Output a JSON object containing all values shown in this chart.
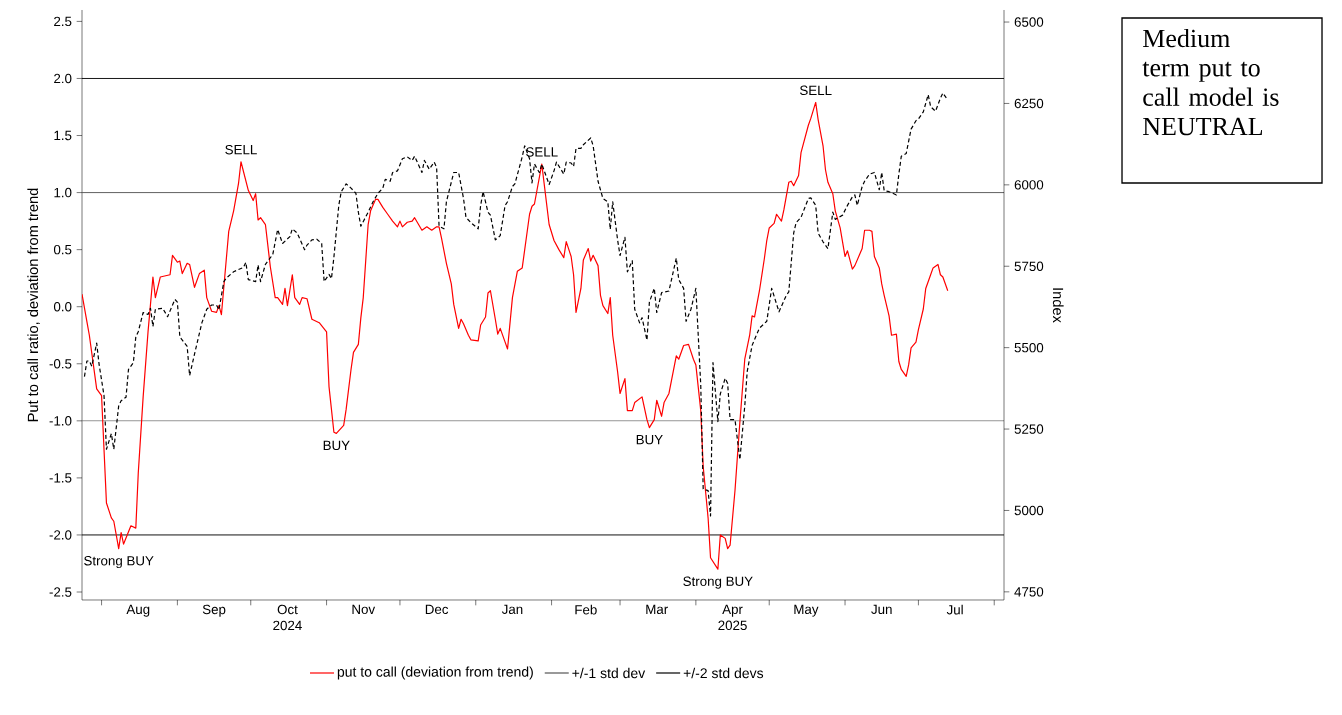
{
  "chart_data": {
    "type": "line",
    "ylabel": "Put to call ratio, deviation from trend",
    "y2label": "Index",
    "xlim": [
      "2024-07-24",
      "2025-08-05"
    ],
    "xticks": [
      {
        "value": "2024-08-01",
        "label": null
      },
      {
        "value": "2024-09-01",
        "label": null
      },
      {
        "value": "2024-10-01",
        "label": null
      },
      {
        "value": "2024-11-01",
        "label": null
      },
      {
        "value": "2024-12-01",
        "label": null
      },
      {
        "value": "2025-01-01",
        "label": null
      },
      {
        "value": "2025-02-01",
        "label": null
      },
      {
        "value": "2025-03-01",
        "label": null
      },
      {
        "value": "2025-04-01",
        "label": null
      },
      {
        "value": "2025-05-01",
        "label": null
      },
      {
        "value": "2025-06-01",
        "label": null
      },
      {
        "value": "2025-07-01",
        "label": null
      },
      {
        "value": "2025-08-01",
        "label": null
      },
      {
        "value": "2024-08-16",
        "label": "Aug"
      },
      {
        "value": "2024-09-16",
        "label": "Sep"
      },
      {
        "value": "2024-10-16",
        "label": "Oct 2024"
      },
      {
        "value": "2024-11-16",
        "label": "Nov"
      },
      {
        "value": "2024-12-16",
        "label": "Dec"
      },
      {
        "value": "2025-01-16",
        "label": "Jan"
      },
      {
        "value": "2025-02-15",
        "label": "Feb"
      },
      {
        "value": "2025-03-16",
        "label": "Mar"
      },
      {
        "value": "2025-04-16",
        "label": "Apr 2025"
      },
      {
        "value": "2025-05-16",
        "label": "May"
      },
      {
        "value": "2025-06-16",
        "label": "Jun"
      },
      {
        "value": "2025-07-16",
        "label": "Jul"
      }
    ],
    "ylim": [
      -2.57,
      2.6
    ],
    "yticks": [
      {
        "value": -2.5,
        "label": "-2.5"
      },
      {
        "value": -2,
        "label": "-2.0"
      },
      {
        "value": -1.5,
        "label": "-1.5"
      },
      {
        "value": -1,
        "label": "-1.0"
      },
      {
        "value": -0.5,
        "label": "-0.5"
      },
      {
        "value": 0,
        "label": "0.0"
      },
      {
        "value": 0.5,
        "label": "0.5"
      },
      {
        "value": 1,
        "label": "1.0"
      },
      {
        "value": 1.5,
        "label": "1.5"
      },
      {
        "value": 2,
        "label": "2.0"
      },
      {
        "value": 2.5,
        "label": "2.5"
      }
    ],
    "y2lim": [
      4725,
      6537
    ],
    "y2ticks": [
      4750,
      5000,
      5250,
      5500,
      5750,
      6000,
      6250,
      6500
    ],
    "legend": "bottom",
    "series": [
      {
        "color": "#000000",
        "axis": "y2",
        "line_style": "dashed",
        "x": [
          "2024-07-25",
          "2024-07-26",
          "2024-07-27",
          "2024-07-28",
          "2024-07-30",
          "2024-07-31",
          "2024-08-02",
          "2024-08-03",
          "2024-08-05",
          "2024-08-06",
          "2024-08-08",
          "2024-08-09",
          "2024-08-11",
          "2024-08-12",
          "2024-08-14",
          "2024-08-15",
          "2024-08-16",
          "2024-08-18",
          "2024-08-20",
          "2024-08-21",
          "2024-08-22",
          "2024-08-23",
          "2024-08-26",
          "2024-08-28",
          "2024-08-29",
          "2024-08-31",
          "2024-09-01",
          "2024-09-02",
          "2024-09-05",
          "2024-09-06",
          "2024-09-08",
          "2024-09-11",
          "2024-09-13",
          "2024-09-15",
          "2024-09-17",
          "2024-09-18",
          "2024-09-20",
          "2024-09-21",
          "2024-09-24",
          "2024-09-26",
          "2024-09-28",
          "2024-09-29",
          "2024-09-30",
          "2024-10-03",
          "2024-10-04",
          "2024-10-05",
          "2024-10-07",
          "2024-10-10",
          "2024-10-12",
          "2024-10-14",
          "2024-10-17",
          "2024-10-18",
          "2024-10-20",
          "2024-10-23",
          "2024-10-24",
          "2024-10-26",
          "2024-10-28",
          "2024-10-30",
          "2024-10-31",
          "2024-11-02",
          "2024-11-03",
          "2024-11-04",
          "2024-11-06",
          "2024-11-07",
          "2024-11-09",
          "2024-11-11",
          "2024-11-13",
          "2024-11-14",
          "2024-11-15",
          "2024-11-18",
          "2024-11-20",
          "2024-11-22",
          "2024-11-24",
          "2024-11-25",
          "2024-11-27",
          "2024-11-28",
          "2024-11-30",
          "2024-12-02",
          "2024-12-04",
          "2024-12-06",
          "2024-12-07",
          "2024-12-10",
          "2024-12-11",
          "2024-12-13",
          "2024-12-15",
          "2024-12-16",
          "2024-12-17",
          "2024-12-19",
          "2024-12-20",
          "2024-12-23",
          "2024-12-25",
          "2024-12-27",
          "2024-12-28",
          "2024-12-30",
          "2025-01-02",
          "2025-01-03",
          "2025-01-04",
          "2025-01-06",
          "2025-01-07",
          "2025-01-09",
          "2025-01-11",
          "2025-01-13",
          "2025-01-14",
          "2025-01-16",
          "2025-01-17",
          "2025-01-20",
          "2025-01-21",
          "2025-01-23",
          "2025-01-24",
          "2025-01-25",
          "2025-01-27",
          "2025-01-28",
          "2025-01-31",
          "2025-02-02",
          "2025-02-03",
          "2025-02-06",
          "2025-02-07",
          "2025-02-09",
          "2025-02-10",
          "2025-02-11",
          "2025-02-13",
          "2025-02-14",
          "2025-02-17",
          "2025-02-18",
          "2025-02-20",
          "2025-02-22",
          "2025-02-24",
          "2025-02-25",
          "2025-02-26",
          "2025-02-28",
          "2025-03-01",
          "2025-03-03",
          "2025-03-04",
          "2025-03-06",
          "2025-03-07",
          "2025-03-09",
          "2025-03-10",
          "2025-03-12",
          "2025-03-13",
          "2025-03-15",
          "2025-03-16",
          "2025-03-18",
          "2025-03-21",
          "2025-03-24",
          "2025-03-25",
          "2025-03-27",
          "2025-03-28",
          "2025-03-30",
          "2025-04-01",
          "2025-04-03",
          "2025-04-04",
          "2025-04-06",
          "2025-04-07",
          "2025-04-08",
          "2025-04-10",
          "2025-04-11",
          "2025-04-13",
          "2025-04-14",
          "2025-04-15",
          "2025-04-17",
          "2025-04-19",
          "2025-04-21",
          "2025-04-22",
          "2025-04-24",
          "2025-04-25",
          "2025-04-27",
          "2025-04-30",
          "2025-05-02",
          "2025-05-05",
          "2025-05-08",
          "2025-05-09",
          "2025-05-11",
          "2025-05-12",
          "2025-05-14",
          "2025-05-17",
          "2025-05-18",
          "2025-05-20",
          "2025-05-21",
          "2025-05-23",
          "2025-05-25",
          "2025-05-27",
          "2025-05-28",
          "2025-05-31",
          "2025-06-02",
          "2025-06-04",
          "2025-06-05",
          "2025-06-06",
          "2025-06-08",
          "2025-06-09",
          "2025-06-11",
          "2025-06-13",
          "2025-06-15",
          "2025-06-16",
          "2025-06-17",
          "2025-06-19",
          "2025-06-22",
          "2025-06-23",
          "2025-06-24",
          "2025-06-26",
          "2025-06-28",
          "2025-06-30",
          "2025-07-01",
          "2025-07-03",
          "2025-07-05",
          "2025-07-06",
          "2025-07-08",
          "2025-07-10",
          "2025-07-11",
          "2025-07-13"
        ],
        "values": [
          5411,
          5459,
          5459,
          5443,
          5514,
          5448,
          5353,
          5188,
          5236,
          5188,
          5321,
          5337,
          5348,
          5433,
          5454,
          5533,
          5549,
          5608,
          5602,
          5621,
          5565,
          5618,
          5621,
          5595,
          5613,
          5648,
          5640,
          5533,
          5504,
          5414,
          5480,
          5576,
          5618,
          5631,
          5631,
          5616,
          5703,
          5714,
          5733,
          5740,
          5746,
          5762,
          5709,
          5703,
          5754,
          5703,
          5756,
          5786,
          5863,
          5820,
          5841,
          5865,
          5852,
          5801,
          5815,
          5831,
          5833,
          5820,
          5703,
          5725,
          5712,
          5778,
          5937,
          5979,
          6003,
          5990,
          5974,
          5916,
          5873,
          5916,
          5948,
          5974,
          5990,
          6017,
          6011,
          6038,
          6043,
          6080,
          6086,
          6075,
          6088,
          6038,
          6075,
          6048,
          6070,
          6054,
          5873,
          5865,
          5948,
          6038,
          6038,
          5958,
          5900,
          5884,
          5865,
          5937,
          5979,
          5916,
          5907,
          5831,
          5844,
          5937,
          5948,
          5995,
          6003,
          6086,
          6120,
          6080,
          6006,
          6064,
          6038,
          6064,
          6001,
          6043,
          6070,
          6033,
          6070,
          6067,
          6056,
          6112,
          6112,
          6123,
          6144,
          6120,
          6011,
          5958,
          5948,
          5863,
          5948,
          5831,
          5783,
          5839,
          5733,
          5767,
          5618,
          5576,
          5592,
          5523,
          5640,
          5682,
          5608,
          5669,
          5674,
          5775,
          5709,
          5682,
          5581,
          5618,
          5682,
          5385,
          5066,
          5061,
          4983,
          5454,
          5273,
          5358,
          5406,
          5390,
          5279,
          5279,
          5156,
          5321,
          5427,
          5507,
          5525,
          5560,
          5581,
          5682,
          5610,
          5661,
          5671,
          5852,
          5884,
          5900,
          5958,
          5960,
          5937,
          5852,
          5825,
          5804,
          5916,
          5894,
          5907,
          5937,
          5963,
          5969,
          5937,
          5995,
          6011,
          6033,
          6038,
          5985,
          6038,
          5982,
          5979,
          5969,
          6033,
          6088,
          6096,
          6171,
          6197,
          6202,
          6224,
          6277,
          6240,
          6226,
          6266,
          6282,
          6261
        ]
      },
      {
        "name": "put to call (deviation from trend)",
        "color": "#ff0000",
        "line_style": "solid",
        "x": [
          "2024-07-24",
          "2024-07-26",
          "2024-07-27",
          "2024-07-30",
          "2024-08-01",
          "2024-08-03",
          "2024-08-05",
          "2024-08-06",
          "2024-08-08",
          "2024-08-09",
          "2024-08-10",
          "2024-08-13",
          "2024-08-15",
          "2024-08-16",
          "2024-08-18",
          "2024-08-20",
          "2024-08-22",
          "2024-08-23",
          "2024-08-25",
          "2024-08-29",
          "2024-08-30",
          "2024-09-01",
          "2024-09-02",
          "2024-09-03",
          "2024-09-05",
          "2024-09-06",
          "2024-09-08",
          "2024-09-10",
          "2024-09-12",
          "2024-09-13",
          "2024-09-15",
          "2024-09-17",
          "2024-09-18",
          "2024-09-19",
          "2024-09-22",
          "2024-09-24",
          "2024-09-26",
          "2024-09-27",
          "2024-09-30",
          "2024-10-02",
          "2024-10-03",
          "2024-10-04",
          "2024-10-05",
          "2024-10-07",
          "2024-10-09",
          "2024-10-11",
          "2024-10-12",
          "2024-10-14",
          "2024-10-15",
          "2024-10-16",
          "2024-10-18",
          "2024-10-19",
          "2024-10-21",
          "2024-10-22",
          "2024-10-24",
          "2024-10-26",
          "2024-10-29",
          "2024-11-01",
          "2024-11-02",
          "2024-11-04",
          "2024-11-05",
          "2024-11-08",
          "2024-11-09",
          "2024-11-11",
          "2024-11-12",
          "2024-11-14",
          "2024-11-15",
          "2024-11-16",
          "2024-11-18",
          "2024-11-19",
          "2024-11-21",
          "2024-11-22",
          "2024-11-24",
          "2024-11-26",
          "2024-11-28",
          "2024-11-30",
          "2024-12-01",
          "2024-12-02",
          "2024-12-04",
          "2024-12-06",
          "2024-12-07",
          "2024-12-10",
          "2024-12-12",
          "2024-12-14",
          "2024-12-16",
          "2024-12-17",
          "2024-12-18",
          "2024-12-20",
          "2024-12-22",
          "2024-12-23",
          "2024-12-25",
          "2024-12-26",
          "2024-12-27",
          "2024-12-29",
          "2024-12-30",
          "2025-01-02",
          "2025-01-03",
          "2025-01-05",
          "2025-01-06",
          "2025-01-07",
          "2025-01-09",
          "2025-01-10",
          "2025-01-11",
          "2025-01-13",
          "2025-01-14",
          "2025-01-16",
          "2025-01-18",
          "2025-01-20",
          "2025-01-23",
          "2025-01-24",
          "2025-01-25",
          "2025-01-28",
          "2025-01-31",
          "2025-02-02",
          "2025-02-04",
          "2025-02-06",
          "2025-02-07",
          "2025-02-09",
          "2025-02-10",
          "2025-02-11",
          "2025-02-13",
          "2025-02-14",
          "2025-02-16",
          "2025-02-17",
          "2025-02-18",
          "2025-02-20",
          "2025-02-21",
          "2025-02-22",
          "2025-02-24",
          "2025-02-25",
          "2025-02-26",
          "2025-02-28",
          "2025-03-01",
          "2025-03-03",
          "2025-03-04",
          "2025-03-06",
          "2025-03-07",
          "2025-03-10",
          "2025-03-12",
          "2025-03-13",
          "2025-03-15",
          "2025-03-16",
          "2025-03-18",
          "2025-03-19",
          "2025-03-21",
          "2025-03-24",
          "2025-03-25",
          "2025-03-27",
          "2025-03-29",
          "2025-03-31",
          "2025-04-01",
          "2025-04-03",
          "2025-04-04",
          "2025-04-06",
          "2025-04-07",
          "2025-04-10",
          "2025-04-11",
          "2025-04-13",
          "2025-04-14",
          "2025-04-15",
          "2025-04-17",
          "2025-04-19",
          "2025-04-21",
          "2025-04-23",
          "2025-04-24",
          "2025-04-25",
          "2025-04-27",
          "2025-04-29",
          "2025-04-30",
          "2025-05-01",
          "2025-05-03",
          "2025-05-04",
          "2025-05-06",
          "2025-05-07",
          "2025-05-09",
          "2025-05-10",
          "2025-05-11",
          "2025-05-13",
          "2025-05-14",
          "2025-05-17",
          "2025-05-18",
          "2025-05-20",
          "2025-05-21",
          "2025-05-23",
          "2025-05-24",
          "2025-05-25",
          "2025-05-27",
          "2025-05-28",
          "2025-05-30",
          "2025-06-01",
          "2025-06-02",
          "2025-06-04",
          "2025-06-05",
          "2025-06-08",
          "2025-06-09",
          "2025-06-11",
          "2025-06-12",
          "2025-06-13",
          "2025-06-15",
          "2025-06-16",
          "2025-06-17",
          "2025-06-19",
          "2025-06-20",
          "2025-06-22",
          "2025-06-23",
          "2025-06-24",
          "2025-06-26",
          "2025-06-27",
          "2025-06-28",
          "2025-06-30",
          "2025-07-01",
          "2025-07-03",
          "2025-07-04",
          "2025-07-06",
          "2025-07-07",
          "2025-07-09",
          "2025-07-10",
          "2025-07-11",
          "2025-07-13"
        ],
        "values": [
          0.11,
          -0.13,
          -0.25,
          -0.72,
          -0.78,
          -1.72,
          -1.85,
          -1.88,
          -2.12,
          -1.98,
          -2.08,
          -1.92,
          -1.94,
          -1.46,
          -0.79,
          -0.22,
          0.26,
          0.08,
          0.26,
          0.28,
          0.45,
          0.39,
          0.4,
          0.29,
          0.38,
          0.37,
          0.17,
          0.29,
          0.32,
          0.08,
          -0.04,
          -0.05,
          0.01,
          -0.07,
          0.66,
          0.84,
          1.08,
          1.27,
          1.02,
          0.93,
          0.99,
          0.76,
          0.78,
          0.72,
          0.35,
          0.08,
          0.08,
          0.02,
          0.16,
          0.01,
          0.28,
          0.08,
          0.02,
          0.08,
          0.07,
          -0.11,
          -0.14,
          -0.22,
          -0.7,
          -1.1,
          -1.11,
          -1.04,
          -0.9,
          -0.55,
          -0.4,
          -0.33,
          -0.1,
          0.08,
          0.72,
          0.84,
          0.94,
          0.94,
          0.87,
          0.81,
          0.75,
          0.7,
          0.75,
          0.7,
          0.74,
          0.75,
          0.78,
          0.67,
          0.7,
          0.67,
          0.7,
          0.7,
          0.6,
          0.38,
          0.2,
          0.02,
          -0.19,
          -0.11,
          -0.15,
          -0.25,
          -0.29,
          -0.3,
          -0.16,
          -0.09,
          0.12,
          0.14,
          -0.11,
          -0.24,
          -0.19,
          -0.31,
          -0.37,
          0.08,
          0.31,
          0.34,
          0.81,
          0.88,
          0.9,
          1.25,
          0.72,
          0.58,
          0.5,
          0.43,
          0.57,
          0.44,
          0.28,
          -0.05,
          0.16,
          0.41,
          0.51,
          0.4,
          0.45,
          0.36,
          0.1,
          0.01,
          -0.06,
          0.08,
          -0.25,
          -0.57,
          -0.76,
          -0.63,
          -0.91,
          -0.91,
          -0.84,
          -0.79,
          -0.99,
          -1.06,
          -0.99,
          -0.82,
          -0.96,
          -0.84,
          -0.76,
          -0.43,
          -0.46,
          -0.34,
          -0.33,
          -0.46,
          -0.51,
          -0.91,
          -1.4,
          -1.85,
          -2.2,
          -2.3,
          -2.0,
          -2.03,
          -2.12,
          -2.09,
          -1.61,
          -1.01,
          -0.46,
          -0.25,
          -0.08,
          -0.09,
          0.14,
          0.42,
          0.58,
          0.69,
          0.73,
          0.81,
          0.75,
          0.85,
          1.09,
          1.1,
          1.06,
          1.15,
          1.35,
          1.59,
          1.65,
          1.79,
          1.64,
          1.41,
          1.2,
          1.09,
          0.99,
          0.84,
          0.69,
          0.44,
          0.49,
          0.33,
          0.36,
          0.51,
          0.67,
          0.67,
          0.66,
          0.44,
          0.34,
          0.2,
          0.1,
          -0.08,
          -0.25,
          -0.24,
          -0.48,
          -0.55,
          -0.61,
          -0.51,
          -0.36,
          -0.31,
          -0.2,
          -0.02,
          0.16,
          0.28,
          0.34,
          0.37,
          0.28,
          0.26,
          0.14
        ]
      }
    ],
    "ref_lines": [
      {
        "axis": "y",
        "value": 1,
        "label": "+/-1 std dev",
        "color": "#555555"
      },
      {
        "axis": "y",
        "value": -1,
        "color": "#555555"
      },
      {
        "axis": "y",
        "value": 2,
        "label": "+/-2 std devs",
        "color": "#000000"
      },
      {
        "axis": "y",
        "value": -2,
        "color": "#000000"
      }
    ],
    "annotations": [
      {
        "text": "SELL",
        "x": "2024-09-27",
        "y": 1.27
      },
      {
        "text": "Strong BUY",
        "x": "2024-08-08",
        "y": -2.12
      },
      {
        "text": "BUY",
        "x": "2024-11-05",
        "y": -1.11
      },
      {
        "text": "SELL",
        "x": "2025-01-28",
        "y": 1.25
      },
      {
        "text": "BUY",
        "x": "2025-03-13",
        "y": -1.06
      },
      {
        "text": "Strong BUY",
        "x": "2025-04-10",
        "y": -2.3
      },
      {
        "text": "SELL",
        "x": "2025-05-20",
        "y": 1.79
      },
      "Medium term put to call model is NEUTRAL"
    ]
  }
}
